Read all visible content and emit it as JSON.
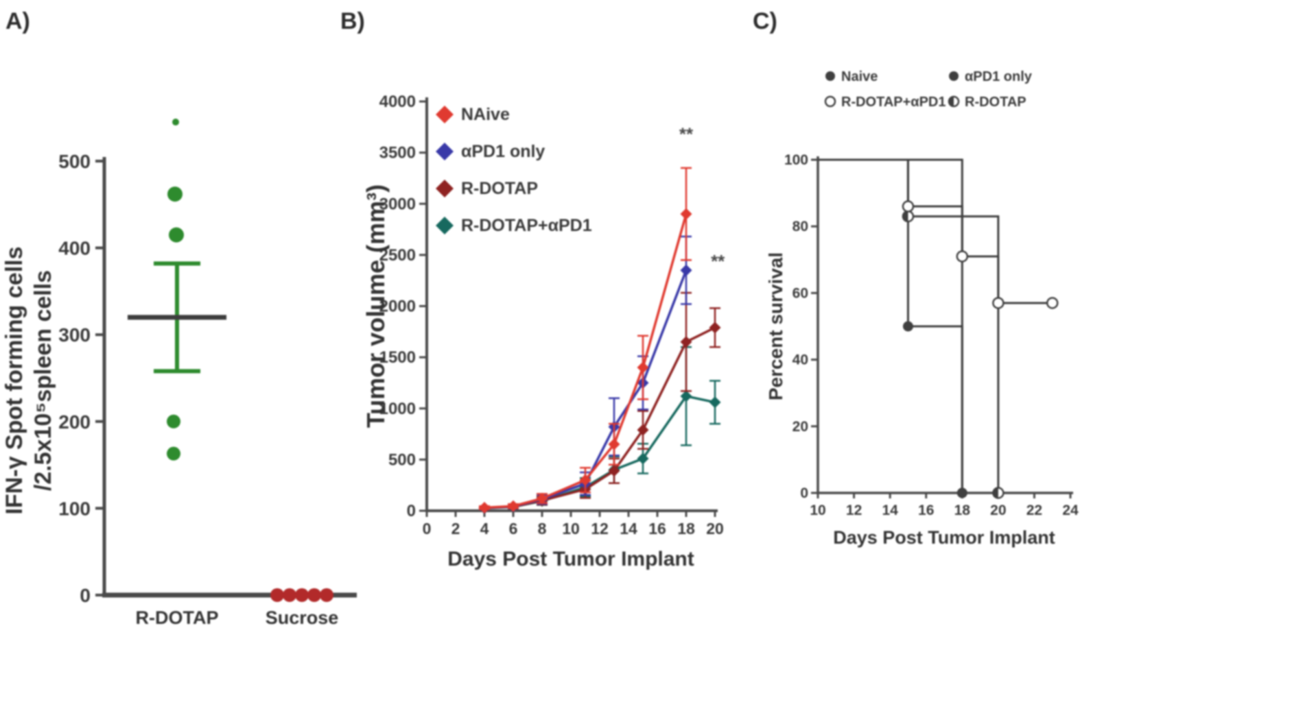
{
  "figure": {
    "panel_labels": {
      "a": "A)",
      "b": "B)",
      "c": "C)"
    }
  },
  "chart_data": [
    {
      "type": "scatter",
      "panel": "A",
      "ylabel_lines": [
        "IFN-γ Spot forming cells",
        "/2.5x10⁵spleen cells"
      ],
      "ylim": [
        0,
        500
      ],
      "yticks": [
        0,
        100,
        200,
        300,
        400,
        500
      ],
      "groups": [
        {
          "label": "R-DOTAP",
          "color": "#2e8b2e",
          "points": [
            {
              "v": 545,
              "r": 5,
              "dx": -2
            },
            {
              "v": 462,
              "r": 11,
              "dx": -3
            },
            {
              "v": 415,
              "r": 11,
              "dx": -1
            },
            {
              "v": 200,
              "r": 10,
              "dx": -5
            },
            {
              "v": 163,
              "r": 10,
              "dx": -5
            }
          ],
          "mean": 320,
          "err_low": 258,
          "err_high": 382,
          "mean_color": "#3d3d3d",
          "err_color": "#2e8b2e"
        },
        {
          "label": "Sucrose",
          "color": "#b22a2a",
          "points": [
            {
              "v": 0,
              "r": 10,
              "dx": -36
            },
            {
              "v": 0,
              "r": 10,
              "dx": -18
            },
            {
              "v": 0,
              "r": 10,
              "dx": 0
            },
            {
              "v": 0,
              "r": 10,
              "dx": 18
            },
            {
              "v": 0,
              "r": 10,
              "dx": 36
            }
          ]
        }
      ]
    },
    {
      "type": "line",
      "panel": "B",
      "ylabel": "Tumor volume (mm³)",
      "xlabel": "Days Post Tumor Implant",
      "xlim": [
        0,
        20
      ],
      "xticks": [
        0,
        2,
        4,
        6,
        8,
        10,
        12,
        14,
        16,
        18,
        20
      ],
      "ylim": [
        0,
        4000
      ],
      "yticks": [
        0,
        500,
        1000,
        1500,
        2000,
        2500,
        3000,
        3500,
        4000
      ],
      "legend_position": "top-left",
      "series": [
        {
          "name": "NAive",
          "color": "#e03a30",
          "x": [
            4,
            6,
            8,
            11,
            13,
            15,
            18
          ],
          "y": [
            30,
            45,
            120,
            300,
            650,
            1400,
            2900
          ],
          "err": [
            15,
            20,
            45,
            120,
            200,
            310,
            450
          ]
        },
        {
          "name": "αPD1 only",
          "color": "#3939a8",
          "x": [
            4,
            6,
            8,
            11,
            13,
            15,
            18
          ],
          "y": [
            28,
            42,
            112,
            265,
            820,
            1250,
            2350
          ],
          "err": [
            15,
            20,
            45,
            110,
            280,
            260,
            330
          ]
        },
        {
          "name": "R-DOTAP",
          "color": "#8f2322",
          "x": [
            4,
            6,
            8,
            11,
            13,
            15,
            18,
            20
          ],
          "y": [
            26,
            40,
            100,
            210,
            390,
            790,
            1650,
            1790
          ],
          "err": [
            15,
            20,
            40,
            85,
            120,
            185,
            480,
            190
          ]
        },
        {
          "name": "R-DOTAP+αPD1",
          "color": "#17695f",
          "x": [
            4,
            6,
            8,
            11,
            13,
            15,
            18,
            20
          ],
          "y": [
            25,
            38,
            95,
            230,
            400,
            510,
            1120,
            1060
          ],
          "err": [
            15,
            20,
            38,
            90,
            130,
            145,
            480,
            210
          ]
        }
      ],
      "annotations": [
        {
          "text": "**",
          "x": 18,
          "y": 3620
        },
        {
          "text": "**",
          "x": 20.2,
          "y": 2380
        }
      ]
    },
    {
      "type": "step",
      "panel": "C",
      "ylabel": "Percent survival",
      "xlabel": "Days Post Tumor Implant",
      "xlim": [
        10,
        24
      ],
      "xticks": [
        10,
        12,
        14,
        16,
        18,
        20,
        22,
        24
      ],
      "ylim": [
        0,
        100
      ],
      "yticks": [
        0,
        20,
        40,
        60,
        80,
        100
      ],
      "line_color": "#3f3f3f",
      "legend": [
        {
          "name": "Naive",
          "marker": "filled"
        },
        {
          "name": "αPD1 only",
          "marker": "filled"
        },
        {
          "name": "R-DOTAP+αPD1",
          "marker": "open"
        },
        {
          "name": "R-DOTAP",
          "marker": "half"
        }
      ],
      "series": [
        {
          "name": "Naive",
          "marker": "filled",
          "steps": [
            [
              10,
              100
            ],
            [
              15,
              100
            ],
            [
              15,
              50
            ],
            [
              18,
              50
            ],
            [
              18,
              0
            ]
          ],
          "markers": [
            [
              15,
              50
            ],
            [
              18,
              0
            ]
          ]
        },
        {
          "name": "αPD1 only",
          "marker": "filled",
          "steps": [
            [
              10,
              100
            ],
            [
              18,
              100
            ],
            [
              18,
              0
            ]
          ],
          "markers": [
            [
              18,
              0
            ]
          ]
        },
        {
          "name": "R-DOTAP",
          "marker": "half",
          "steps": [
            [
              10,
              100
            ],
            [
              15,
              100
            ],
            [
              15,
              83
            ],
            [
              20,
              83
            ],
            [
              20,
              0
            ]
          ],
          "markers": [
            [
              15,
              83
            ],
            [
              20,
              0
            ]
          ]
        },
        {
          "name": "R-DOTAP+αPD1",
          "marker": "open",
          "steps": [
            [
              10,
              100
            ],
            [
              15,
              100
            ],
            [
              15,
              86
            ],
            [
              18,
              86
            ],
            [
              18,
              71
            ],
            [
              20,
              71
            ],
            [
              20,
              57
            ],
            [
              23,
              57
            ]
          ],
          "markers": [
            [
              15,
              86
            ],
            [
              18,
              71
            ],
            [
              20,
              57
            ],
            [
              23,
              57
            ]
          ]
        }
      ]
    }
  ]
}
